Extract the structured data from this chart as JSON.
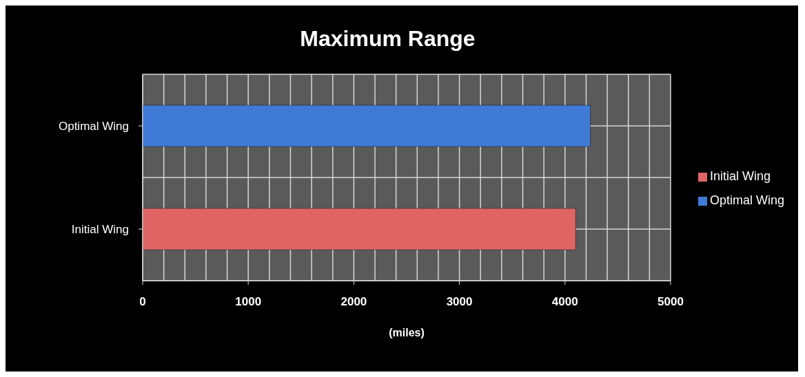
{
  "chart_data": {
    "type": "bar",
    "orientation": "horizontal",
    "stacked": true,
    "title": "Maximum Range",
    "xlabel": "(miles)",
    "categories": [
      "Optimal Wing",
      "Initial Wing"
    ],
    "series": [
      {
        "name": "Initial Wing",
        "color": "#e06666",
        "values": [
          null,
          4100
        ]
      },
      {
        "name": "Optimal Wing",
        "color": "#3f7bd6",
        "values": [
          4240,
          null
        ]
      }
    ],
    "xlim": [
      0,
      5000
    ],
    "xticks": [
      0,
      1000,
      2000,
      3000,
      4000,
      5000
    ],
    "grid": true,
    "legend": "right"
  }
}
